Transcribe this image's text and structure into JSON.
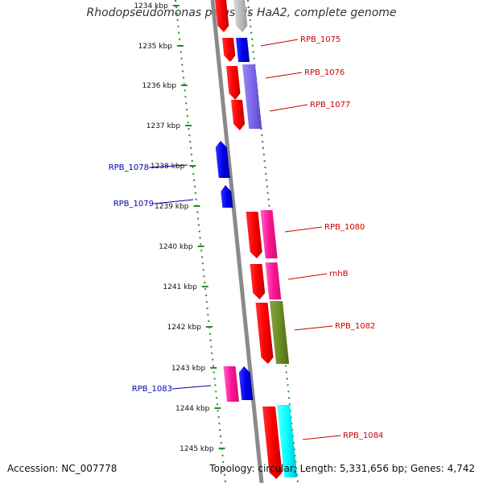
{
  "title": "Rhodopseudomonas palustris HaA2, complete genome",
  "footer": {
    "accession": "Accession: NC_007778",
    "topology": "Topology: circular; Length: 5,331,656 bp; Genes: 4,742"
  },
  "colors": {
    "backbone": "#8a8a8a",
    "ruler": "#2a8a2a",
    "forward_label": "#cc0000",
    "reverse_label": "#0000aa"
  },
  "ruler_ticks": [
    "1234 kbp",
    "1235 kbp",
    "1236 kbp",
    "1237 kbp",
    "1238 kbp",
    "1239 kbp",
    "1240 kbp",
    "1241 kbp",
    "1242 kbp",
    "1243 kbp",
    "1244 kbp",
    "1245 kbp"
  ],
  "genes": [
    {
      "label": "",
      "strand": "forward"
    },
    {
      "label": "RPB_1075",
      "strand": "forward"
    },
    {
      "label": "RPB_1076",
      "strand": "forward"
    },
    {
      "label": "RPB_1077",
      "strand": "forward"
    },
    {
      "label": "RPB_1078",
      "strand": "reverse"
    },
    {
      "label": "RPB_1079",
      "strand": "reverse"
    },
    {
      "label": "RPB_1080",
      "strand": "forward"
    },
    {
      "label": "rnhB",
      "strand": "forward"
    },
    {
      "label": "RPB_1082",
      "strand": "forward"
    },
    {
      "label": "RPB_1083",
      "strand": "reverse"
    },
    {
      "label": "RPB_1084",
      "strand": "forward"
    }
  ]
}
